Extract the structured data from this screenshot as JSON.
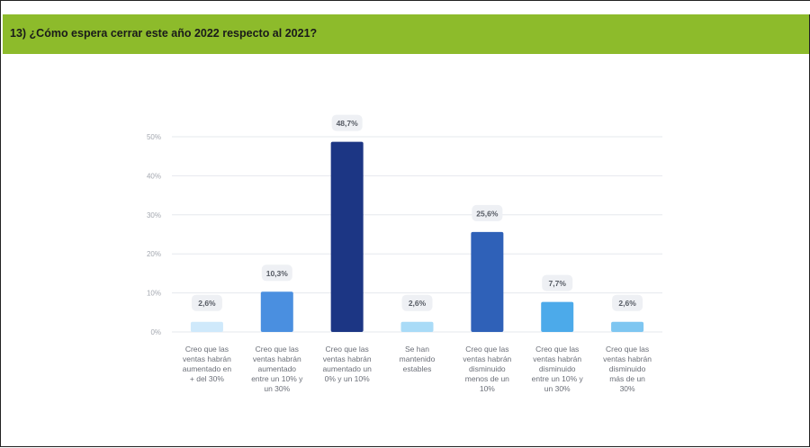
{
  "header": {
    "title": "13) ¿Cómo espera cerrar este año 2022 respecto al 2021?"
  },
  "colors": {
    "banner": "#8dbb2b"
  },
  "chart_data": {
    "type": "bar",
    "title": "",
    "xlabel": "",
    "ylabel": "",
    "ylim": [
      0,
      50
    ],
    "y_ticks": [
      "0%",
      "10%",
      "20%",
      "30%",
      "40%",
      "50%"
    ],
    "grid": true,
    "categories": [
      [
        "Creo que las",
        "ventas habrán",
        "aumentado en",
        "+ del 30%"
      ],
      [
        "Creo que las",
        "ventas habrán",
        "aumentado",
        "entre un 10% y",
        "un 30%"
      ],
      [
        "Creo que las",
        "ventas habrán",
        "aumentado un",
        "0% y un 10%"
      ],
      [
        "Se han",
        "mantenido",
        "estables"
      ],
      [
        "Creo que las",
        "ventas habrán",
        "disminuido",
        "menos de un",
        "10%"
      ],
      [
        "Creo que las",
        "ventas habrán",
        "disminuido",
        "entre un 10% y",
        "un 30%"
      ],
      [
        "Creo que las",
        "ventas habrán",
        "disminuido",
        "más de un",
        "30%"
      ]
    ],
    "values": [
      2.6,
      10.3,
      48.7,
      2.6,
      25.6,
      7.7,
      2.6
    ],
    "data_labels": [
      "2,6%",
      "10,3%",
      "48,7%",
      "2,6%",
      "25,6%",
      "7,7%",
      "2,6%"
    ],
    "colors": [
      "#cfe9fb",
      "#4a8fe0",
      "#1c3684",
      "#a9dbf7",
      "#2f61b8",
      "#4caaea",
      "#7ec6f1"
    ]
  }
}
